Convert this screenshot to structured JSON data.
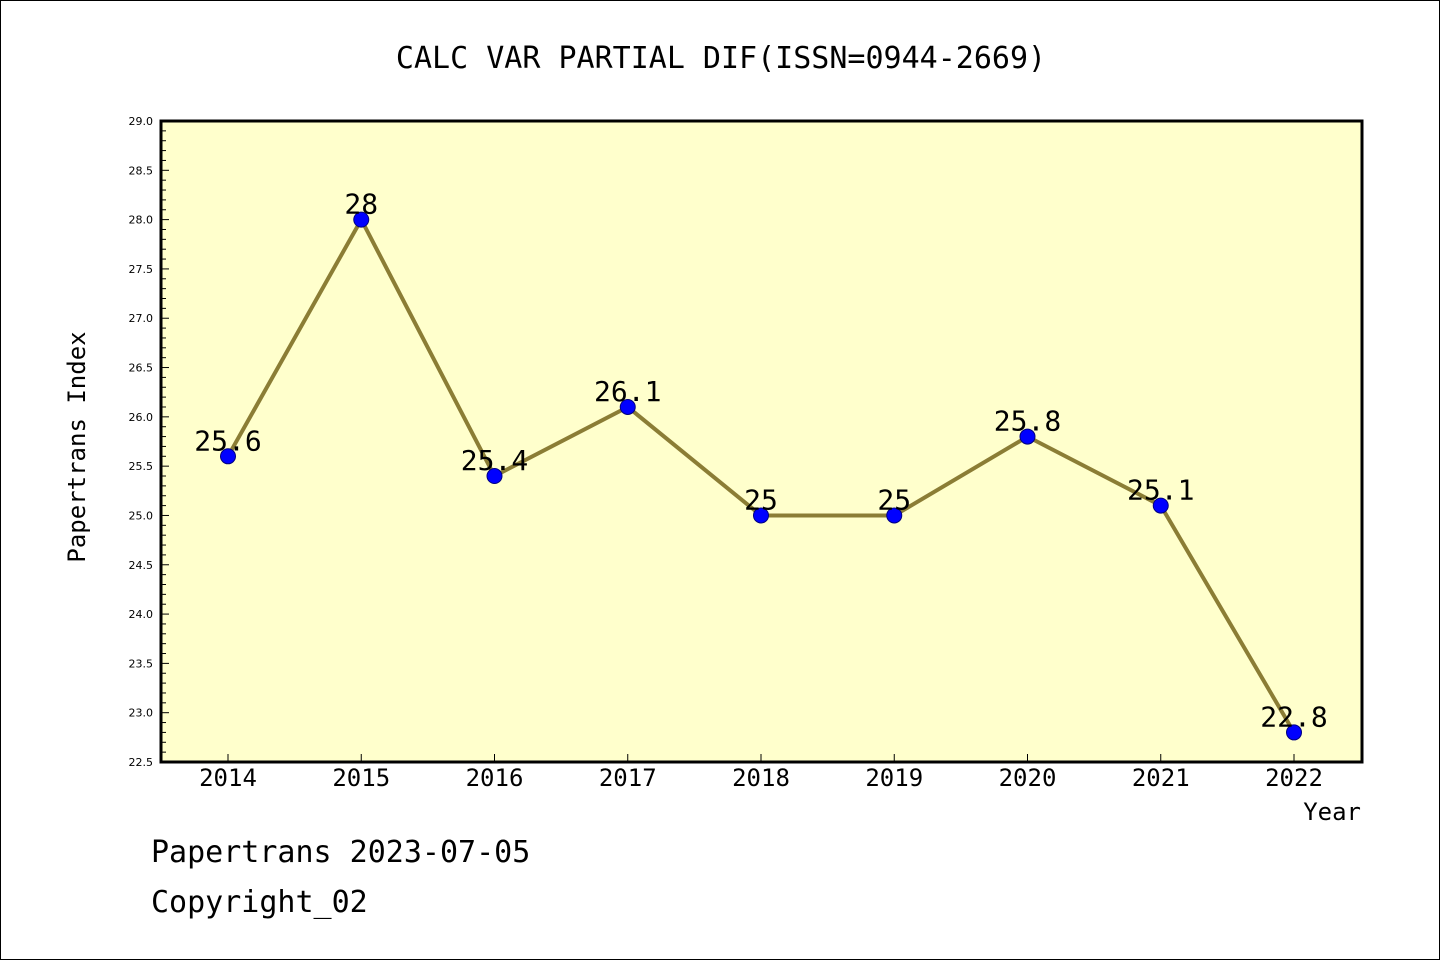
{
  "colors": {
    "plot_background": "#ffffcc",
    "line": "#8b7d35",
    "marker": "#0000ff",
    "marker_edge": "#000080"
  },
  "chart_data": {
    "type": "line",
    "title": "CALC VAR PARTIAL DIF(ISSN=0944-2669)",
    "xlabel": "Year",
    "ylabel": "Papertrans Index",
    "categories": [
      "2014",
      "2015",
      "2016",
      "2017",
      "2018",
      "2019",
      "2020",
      "2021",
      "2022"
    ],
    "series": [
      {
        "values": [
          25.6,
          28,
          25.4,
          26.1,
          25,
          25,
          25.8,
          25.1,
          22.8
        ]
      }
    ],
    "data_labels": [
      "25.6",
      "28",
      "25.4",
      "26.1",
      "25",
      "25",
      "25.8",
      "25.1",
      "22.8"
    ],
    "ylim": [
      22.5,
      29.0
    ],
    "y_ticks": [
      "22.5",
      "23.0",
      "23.5",
      "24.0",
      "24.5",
      "25.0",
      "25.5",
      "26.0",
      "26.5",
      "27.0",
      "27.5",
      "28.0",
      "28.5",
      "29.0"
    ],
    "y_minor_step": 0.1,
    "grid": false,
    "legend": "none"
  },
  "footer": {
    "line1": "Papertrans 2023-07-05",
    "line2": "Copyright_02"
  }
}
